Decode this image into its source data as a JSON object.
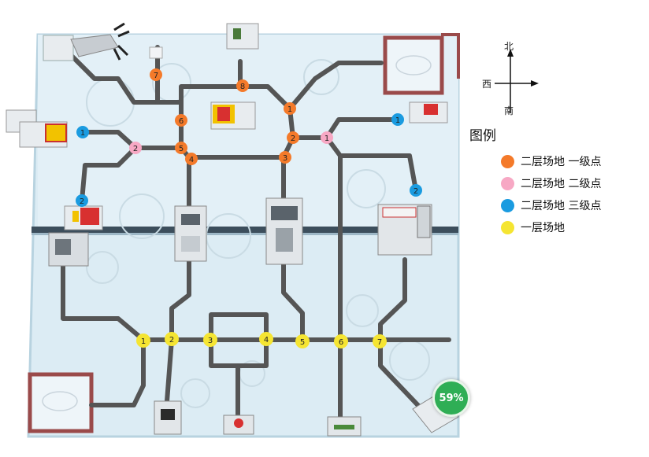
{
  "compass": {
    "north": "北",
    "west": "西",
    "south": "南"
  },
  "legend": {
    "title": "图例",
    "items": [
      {
        "label": "二层场地 一级点",
        "color": "#f47a2a"
      },
      {
        "label": "二层场地 二级点",
        "color": "#f7a8c4"
      },
      {
        "label": "二层场地 三级点",
        "color": "#1a9be0"
      },
      {
        "label": "一层场地",
        "color": "#f5e532"
      }
    ]
  },
  "markers": {
    "orange": [
      "7",
      "8",
      "6",
      "1",
      "5",
      "2",
      "4",
      "3"
    ],
    "pink": [
      "2",
      "1"
    ],
    "blue": [
      "1",
      "1",
      "2",
      "2"
    ],
    "yellow": [
      "1",
      "2",
      "3",
      "4",
      "5",
      "6",
      "7"
    ]
  },
  "progress": {
    "label": "59%",
    "value": 0.59
  },
  "colors": {
    "track": "#555555",
    "field": "#dcecf4",
    "field_border": "#b8d3e0",
    "wall": "#b04848"
  }
}
